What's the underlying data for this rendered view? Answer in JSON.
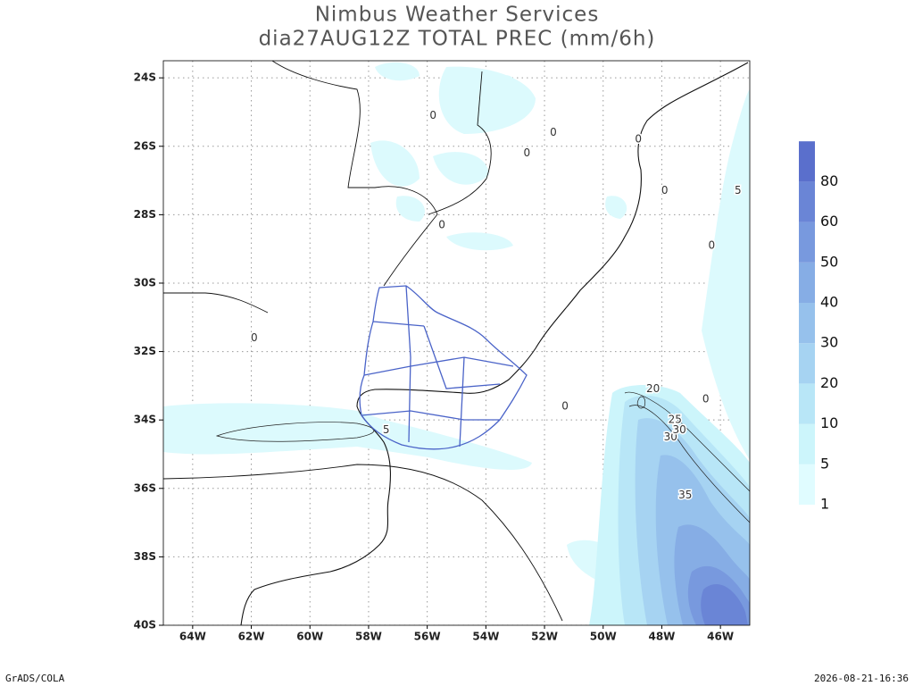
{
  "header": {
    "title": "Nimbus Weather Services",
    "subtitle": "dia27AUG12Z TOTAL PREC (mm/6h)"
  },
  "map": {
    "lon_range": [
      -65,
      -45
    ],
    "lat_range": [
      -23.5,
      -40
    ],
    "grid": true,
    "lon_ticks": [
      {
        "value": -64,
        "label": "64W"
      },
      {
        "value": -62,
        "label": "62W"
      },
      {
        "value": -60,
        "label": "60W"
      },
      {
        "value": -58,
        "label": "58W"
      },
      {
        "value": -56,
        "label": "56W"
      },
      {
        "value": -54,
        "label": "54W"
      },
      {
        "value": -52,
        "label": "52W"
      },
      {
        "value": -50,
        "label": "50W"
      },
      {
        "value": -48,
        "label": "48W"
      },
      {
        "value": -46,
        "label": "46W"
      }
    ],
    "lat_ticks": [
      {
        "value": -24,
        "label": "24S"
      },
      {
        "value": -26,
        "label": "26S"
      },
      {
        "value": -28,
        "label": "28S"
      },
      {
        "value": -30,
        "label": "30S"
      },
      {
        "value": -32,
        "label": "32S"
      },
      {
        "value": -34,
        "label": "34S"
      },
      {
        "value": -36,
        "label": "36S"
      },
      {
        "value": -38,
        "label": "38S"
      },
      {
        "value": -40,
        "label": "40S"
      }
    ],
    "colorbar": {
      "levels": [
        1,
        5,
        10,
        20,
        30,
        40,
        50,
        60,
        80
      ],
      "colors": [
        "#e0fcff",
        "#ccf5fb",
        "#b8e6f7",
        "#a6d3f2",
        "#96c1ec",
        "#86ade5",
        "#7899de",
        "#6a85d6",
        "#5a6fcc"
      ]
    },
    "contour_labels": [
      {
        "value": 20,
        "lon": -48.3,
        "lat": -33.1
      },
      {
        "value": 25,
        "lon": -47.55,
        "lat": -34.0
      },
      {
        "value": 30,
        "lon": -47.7,
        "lat": -34.5
      },
      {
        "value": 30,
        "lon": -47.4,
        "lat": -34.3
      },
      {
        "value": 35,
        "lon": -47.2,
        "lat": -36.2
      },
      {
        "value": 5,
        "lon": -57.4,
        "lat": -34.3
      },
      {
        "value": 5,
        "lon": -45.4,
        "lat": -27.3
      },
      {
        "value": 0,
        "lon": -48.8,
        "lat": -25.8
      },
      {
        "value": 0,
        "lon": -47.9,
        "lat": -27.3
      },
      {
        "value": 0,
        "lon": -46.3,
        "lat": -28.9
      },
      {
        "value": 0,
        "lon": -51.3,
        "lat": -33.6
      },
      {
        "value": 0,
        "lon": -46.5,
        "lat": -33.4
      },
      {
        "value": 0,
        "lon": -55.5,
        "lat": -28.3
      },
      {
        "value": 0,
        "lon": -61.9,
        "lat": -31.6
      },
      {
        "value": 0,
        "lon": -52.6,
        "lat": -26.2
      },
      {
        "value": 0,
        "lon": -51.7,
        "lat": -25.6
      },
      {
        "value": 0,
        "lon": -55.8,
        "lat": -25.1
      }
    ]
  },
  "footer": {
    "left": "GrADS/COLA",
    "right": "2026-08-21-16:36"
  }
}
